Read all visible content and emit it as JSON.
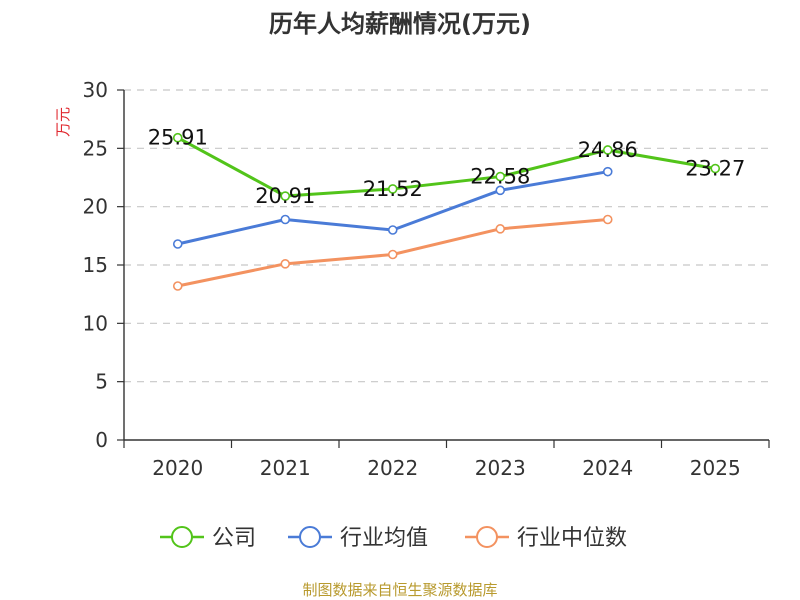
{
  "chart_data": {
    "type": "line",
    "title": "历年人均薪酬情况(万元)",
    "ylabel": "万元",
    "xlabel": "",
    "categories": [
      "2020",
      "2021",
      "2022",
      "2023",
      "2024",
      "2025"
    ],
    "ylim": [
      0,
      30
    ],
    "yticks": [
      0,
      5,
      10,
      15,
      20,
      25,
      30
    ],
    "grid": true,
    "legend_position": "bottom",
    "series": [
      {
        "name": "公司",
        "color": "#52c41a",
        "values": [
          25.91,
          20.91,
          21.52,
          22.58,
          24.86,
          23.27
        ],
        "labels": [
          "25.91",
          "20.91",
          "21.52",
          "22.58",
          "24.86",
          "23.27"
        ]
      },
      {
        "name": "行业均值",
        "color": "#4a7bd7",
        "values": [
          16.8,
          18.9,
          18.0,
          21.4,
          23.0,
          null
        ]
      },
      {
        "name": "行业中位数",
        "color": "#f39260",
        "values": [
          13.2,
          15.1,
          15.9,
          18.1,
          18.9,
          null
        ]
      }
    ]
  },
  "footer": {
    "source": "制图数据来自恒生聚源数据库"
  }
}
